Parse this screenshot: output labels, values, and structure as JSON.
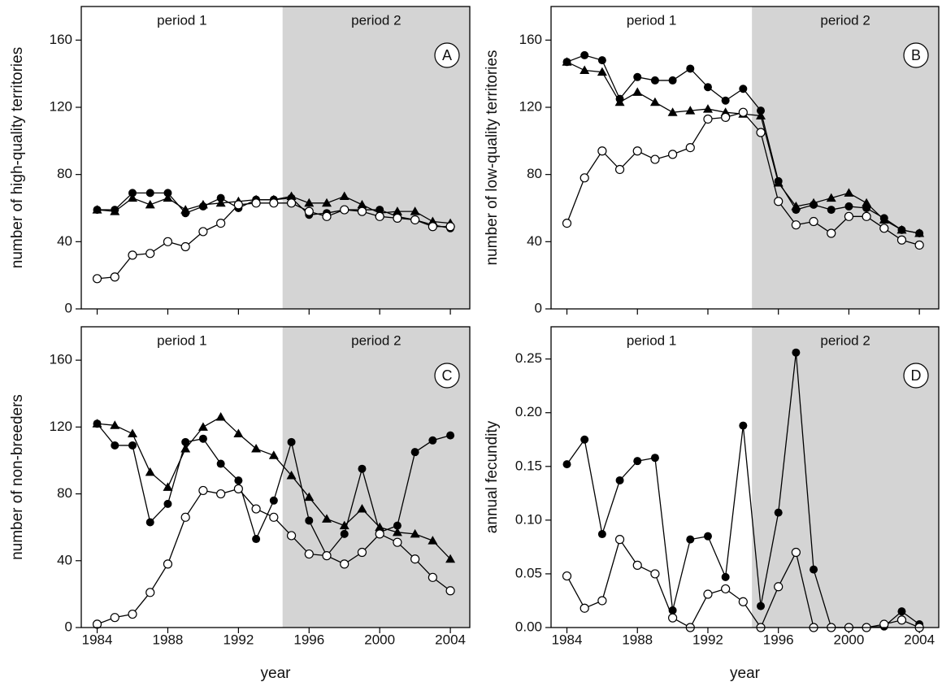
{
  "chart_data": [
    {
      "type": "line",
      "panel_label": "A",
      "ylabel": "number of high-quality territories",
      "period_labels": [
        "period 1",
        "period 2"
      ],
      "shade_from": 1994.5,
      "shade_color": "#d4d4d4",
      "show_xticklabels": false,
      "x": [
        1984,
        1985,
        1986,
        1987,
        1988,
        1989,
        1990,
        1991,
        1992,
        1993,
        1994,
        1995,
        1996,
        1997,
        1998,
        1999,
        2000,
        2001,
        2002,
        2003,
        2004
      ],
      "xlim": [
        1983.1,
        2005.1
      ],
      "xticks": [
        1984,
        1988,
        1992,
        1996,
        2000,
        2004
      ],
      "ylim": [
        0,
        180
      ],
      "yticks": [
        0,
        40,
        80,
        120,
        160
      ],
      "series": [
        {
          "color": "#000000",
          "marker": "filled-circle",
          "values": [
            59,
            59,
            69,
            69,
            69,
            57,
            61,
            66,
            60,
            65,
            65,
            66,
            56,
            57,
            59,
            59,
            59,
            55,
            53,
            50,
            48
          ]
        },
        {
          "color": "#000000",
          "marker": "triangle",
          "values": [
            59,
            58,
            66,
            62,
            66,
            59,
            62,
            63,
            64,
            65,
            65,
            67,
            63,
            63,
            67,
            62,
            57,
            58,
            58,
            52,
            51
          ]
        },
        {
          "color": "#000000",
          "marker": "open-circle",
          "values": [
            18,
            19,
            32,
            33,
            40,
            37,
            46,
            51,
            62,
            63,
            63,
            63,
            58,
            55,
            59,
            58,
            55,
            54,
            53,
            49,
            49
          ]
        }
      ]
    },
    {
      "type": "line",
      "panel_label": "B",
      "ylabel": "number of low-quality territories",
      "period_labels": [
        "period 1",
        "period 2"
      ],
      "shade_from": 1994.5,
      "shade_color": "#d4d4d4",
      "show_xticklabels": false,
      "x": [
        1984,
        1985,
        1986,
        1987,
        1988,
        1989,
        1990,
        1991,
        1992,
        1993,
        1994,
        1995,
        1996,
        1997,
        1998,
        1999,
        2000,
        2001,
        2002,
        2003,
        2004
      ],
      "xlim": [
        1983.1,
        2005.1
      ],
      "xticks": [
        1984,
        1988,
        1992,
        1996,
        2000,
        2004
      ],
      "ylim": [
        0,
        180
      ],
      "yticks": [
        0,
        40,
        80,
        120,
        160
      ],
      "series": [
        {
          "color": "#000000",
          "marker": "filled-circle",
          "values": [
            147,
            151,
            148,
            125,
            138,
            136,
            136,
            143,
            132,
            124,
            131,
            118,
            76,
            59,
            62,
            59,
            61,
            60,
            54,
            47,
            45
          ]
        },
        {
          "color": "#000000",
          "marker": "triangle",
          "values": [
            147,
            142,
            141,
            123,
            129,
            123,
            117,
            118,
            119,
            117,
            116,
            115,
            75,
            61,
            63,
            66,
            69,
            63,
            53,
            47,
            45
          ]
        },
        {
          "color": "#000000",
          "marker": "open-circle",
          "values": [
            51,
            78,
            94,
            83,
            94,
            89,
            92,
            96,
            113,
            114,
            117,
            105,
            64,
            50,
            52,
            45,
            55,
            55,
            48,
            41,
            38
          ]
        }
      ]
    },
    {
      "type": "line",
      "panel_label": "C",
      "ylabel": "number of non-breeders",
      "xlabel": "year",
      "period_labels": [
        "period 1",
        "period 2"
      ],
      "shade_from": 1994.5,
      "shade_color": "#d4d4d4",
      "show_xticklabels": true,
      "x": [
        1984,
        1985,
        1986,
        1987,
        1988,
        1989,
        1990,
        1991,
        1992,
        1993,
        1994,
        1995,
        1996,
        1997,
        1998,
        1999,
        2000,
        2001,
        2002,
        2003,
        2004
      ],
      "xlim": [
        1983.1,
        2005.1
      ],
      "xticks": [
        1984,
        1988,
        1992,
        1996,
        2000,
        2004
      ],
      "ylim": [
        0,
        180
      ],
      "yticks": [
        0,
        40,
        80,
        120,
        160
      ],
      "series": [
        {
          "color": "#000000",
          "marker": "filled-circle",
          "values": [
            122,
            109,
            109,
            63,
            74,
            111,
            113,
            98,
            88,
            53,
            76,
            111,
            64,
            43,
            56,
            95,
            57,
            61,
            105,
            112,
            115
          ]
        },
        {
          "color": "#000000",
          "marker": "triangle",
          "values": [
            122,
            121,
            116,
            93,
            84,
            107,
            120,
            126,
            116,
            107,
            103,
            91,
            78,
            65,
            61,
            71,
            60,
            57,
            56,
            52,
            41
          ]
        },
        {
          "color": "#000000",
          "marker": "open-circle",
          "values": [
            2,
            6,
            8,
            21,
            38,
            66,
            82,
            80,
            83,
            71,
            66,
            55,
            44,
            43,
            38,
            45,
            56,
            51,
            41,
            30,
            22
          ]
        }
      ]
    },
    {
      "type": "line",
      "panel_label": "D",
      "ylabel": "annual fecundity",
      "xlabel": "year",
      "period_labels": [
        "period 1",
        "period 2"
      ],
      "shade_from": 1994.5,
      "shade_color": "#d4d4d4",
      "show_xticklabels": true,
      "x": [
        1984,
        1985,
        1986,
        1987,
        1988,
        1989,
        1990,
        1991,
        1992,
        1993,
        1994,
        1995,
        1996,
        1997,
        1998,
        1999,
        2000,
        2001,
        2002,
        2003,
        2004
      ],
      "xlim": [
        1983.1,
        2005.1
      ],
      "xticks": [
        1984,
        1988,
        1992,
        1996,
        2000,
        2004
      ],
      "ylim": [
        0,
        0.28
      ],
      "yticks": [
        {
          "value": 0,
          "label": "0.00"
        },
        0.05,
        {
          "value": 0.1,
          "label": "0.10"
        },
        0.15,
        {
          "value": 0.2,
          "label": "0.20"
        },
        0.25
      ],
      "series": [
        {
          "color": "#000000",
          "marker": "filled-circle",
          "values": [
            0.152,
            0.175,
            0.087,
            0.137,
            0.155,
            0.158,
            0.016,
            0.082,
            0.085,
            0.047,
            0.188,
            0.02,
            0.107,
            0.256,
            0.054,
            0,
            0,
            0,
            0.001,
            0.015,
            0.003
          ]
        },
        {
          "color": "#000000",
          "marker": "open-circle",
          "values": [
            0.048,
            0.018,
            0.025,
            0.082,
            0.058,
            0.05,
            0.009,
            0,
            0.031,
            0.036,
            0.024,
            0,
            0.038,
            0.07,
            0,
            0,
            0,
            0,
            0.003,
            0.007,
            0
          ]
        }
      ]
    }
  ]
}
